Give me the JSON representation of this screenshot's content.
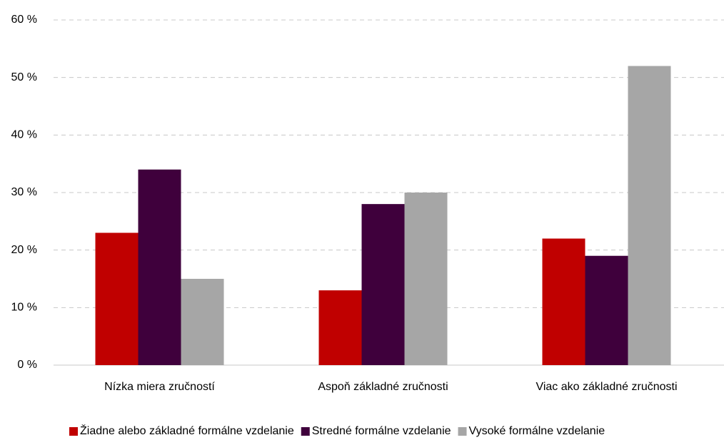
{
  "chart_data": {
    "type": "bar",
    "categories": [
      "Nízka miera zručností",
      "Aspoň základné zručnosti",
      "Viac ako základné zručnosti"
    ],
    "series": [
      {
        "name": "Žiadne alebo základné formálne vzdelanie",
        "color": "#c00000",
        "values": [
          23,
          13,
          22
        ]
      },
      {
        "name": "Stredné formálne vzdelanie",
        "color": "#3f003c",
        "values": [
          34,
          28,
          19
        ]
      },
      {
        "name": "Vysoké formálne vzdelanie",
        "color": "#a6a6a6",
        "values": [
          15,
          30,
          52
        ]
      }
    ],
    "ylim": [
      0,
      60
    ],
    "yticks": [
      {
        "value": 0,
        "label": "0 %"
      },
      {
        "value": 10,
        "label": "10 %"
      },
      {
        "value": 20,
        "label": "20 %"
      },
      {
        "value": 30,
        "label": "30 %"
      },
      {
        "value": 40,
        "label": "40 %"
      },
      {
        "value": 50,
        "label": "50 %"
      },
      {
        "value": 60,
        "label": "60 %"
      }
    ],
    "grid": true,
    "legend": "bottom"
  }
}
